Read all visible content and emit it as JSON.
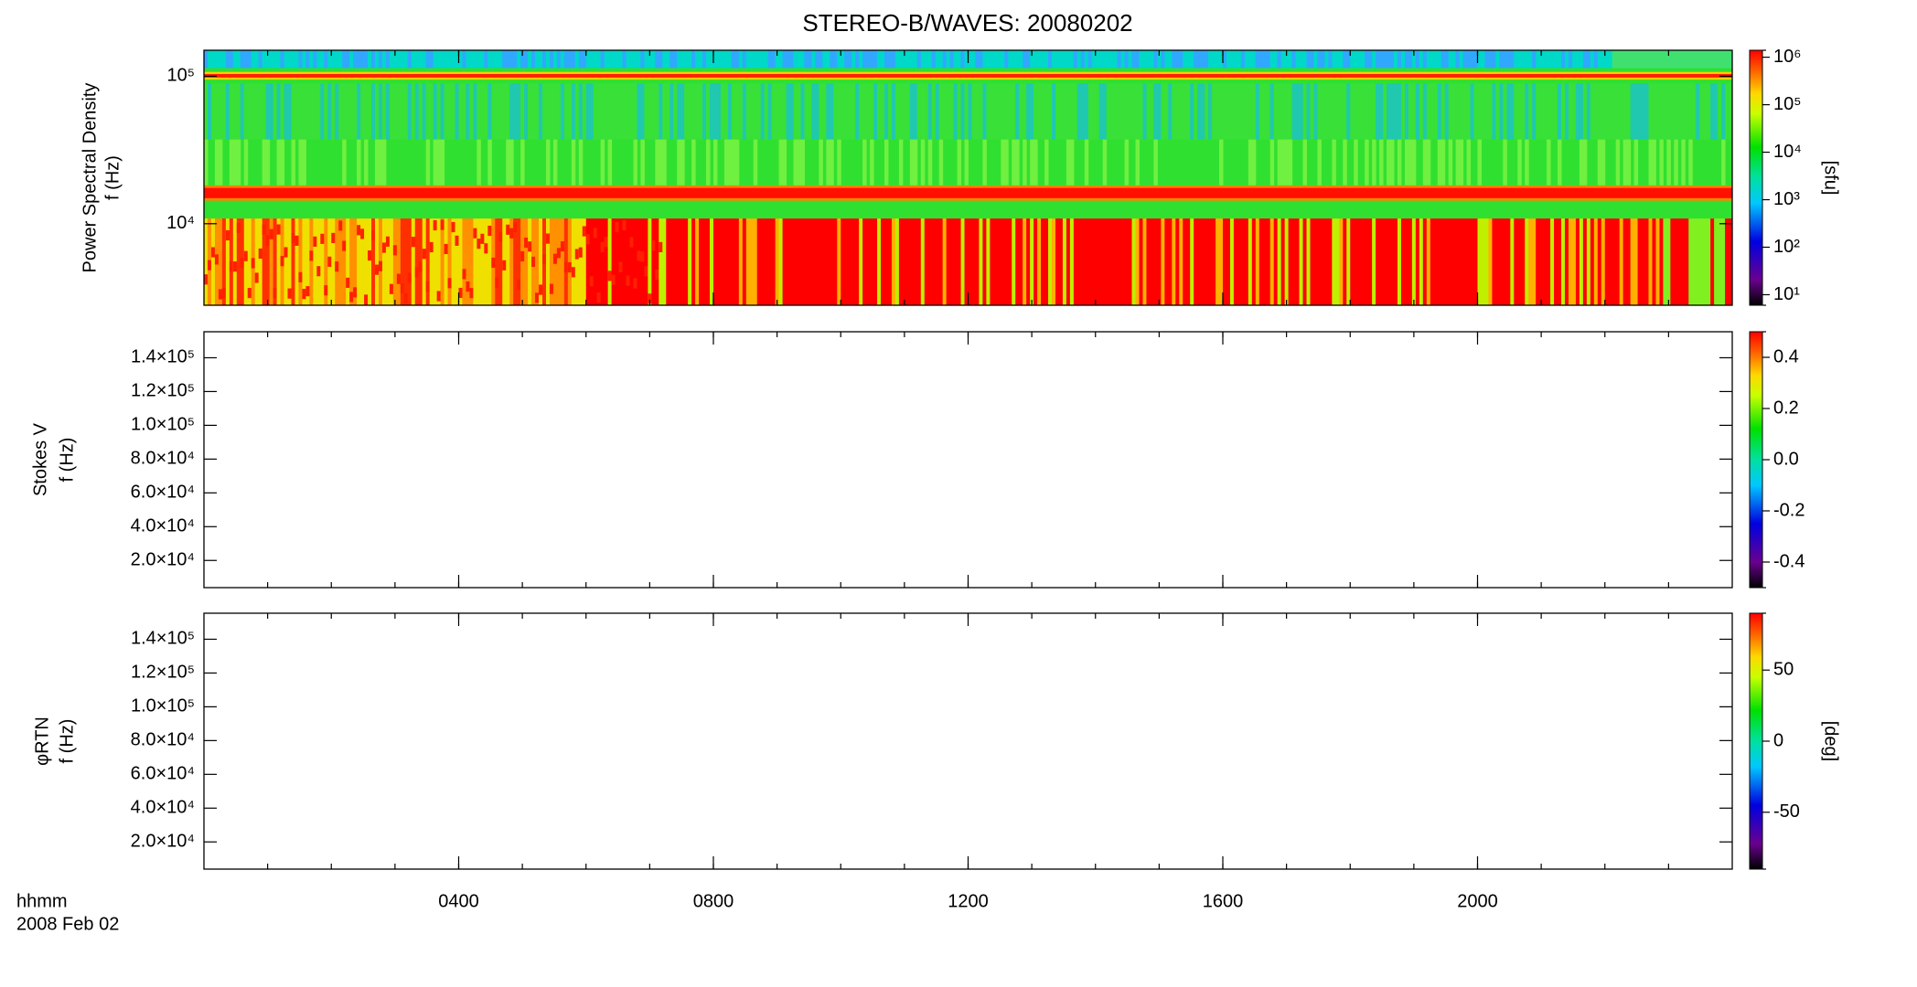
{
  "chart_data": [
    {
      "type": "spectrogram",
      "title": "STEREO-B/WAVES: 20080202",
      "ylabel": [
        "Power Spectral Density",
        "f (Hz)"
      ],
      "log_y": true,
      "ylim": [
        2800,
        150000
      ],
      "yticks": [
        {
          "value": 10000,
          "label": "10⁴"
        },
        {
          "value": 100000,
          "label": "10⁵"
        }
      ],
      "colorbar": {
        "label": "[sfu]",
        "log": true,
        "clim": [
          6,
          1400000
        ],
        "ticks": [
          {
            "value": 10,
            "label": "10¹"
          },
          {
            "value": 100,
            "label": "10²"
          },
          {
            "value": 1000,
            "label": "10³"
          },
          {
            "value": 10000,
            "label": "10⁴"
          },
          {
            "value": 100000,
            "label": "10⁵"
          },
          {
            "value": 1000000,
            "label": "10⁶"
          }
        ]
      }
    },
    {
      "type": "spectrogram",
      "ylabel": [
        "Stokes V",
        "f (Hz)"
      ],
      "log_y": false,
      "ylim": [
        3900,
        155400
      ],
      "yticks": [
        {
          "value": 20000,
          "label": "2.0×10⁴"
        },
        {
          "value": 40000,
          "label": "4.0×10⁴"
        },
        {
          "value": 60000,
          "label": "6.0×10⁴"
        },
        {
          "value": 80000,
          "label": "8.0×10⁴"
        },
        {
          "value": 100000,
          "label": "1.0×10⁵"
        },
        {
          "value": 120000,
          "label": "1.2×10⁵"
        },
        {
          "value": 140000,
          "label": "1.4×10⁵"
        }
      ],
      "colorbar": {
        "log": false,
        "clim": [
          -0.5,
          0.5
        ],
        "ticks": [
          -0.4,
          -0.2,
          {
            "value": 0,
            "label": "0.0"
          },
          0.2,
          0.4
        ]
      }
    },
    {
      "type": "spectrogram",
      "ylabel": [
        "φRTN",
        "f (Hz)"
      ],
      "log_y": false,
      "ylim": [
        3900,
        155400
      ],
      "yticks": [
        {
          "value": 20000,
          "label": "2.0×10⁴"
        },
        {
          "value": 40000,
          "label": "4.0×10⁴"
        },
        {
          "value": 60000,
          "label": "6.0×10⁴"
        },
        {
          "value": 80000,
          "label": "8.0×10⁴"
        },
        {
          "value": 100000,
          "label": "1.0×10⁵"
        },
        {
          "value": 120000,
          "label": "1.2×10⁵"
        },
        {
          "value": 140000,
          "label": "1.4×10⁵"
        }
      ],
      "colorbar": {
        "label": "[deg]",
        "log": false,
        "clim": [
          -90,
          90
        ],
        "ticks": [
          -50,
          0,
          50
        ]
      },
      "xlabel": "hhmm",
      "date": "2008 Feb 02",
      "xlim": [
        0,
        24
      ],
      "xticks": [
        {
          "value": 4,
          "label": "0400"
        },
        {
          "value": 8,
          "label": "0800"
        },
        {
          "value": 12,
          "label": "1200"
        },
        {
          "value": 16,
          "label": "1600"
        },
        {
          "value": 20,
          "label": "2000"
        }
      ]
    }
  ]
}
